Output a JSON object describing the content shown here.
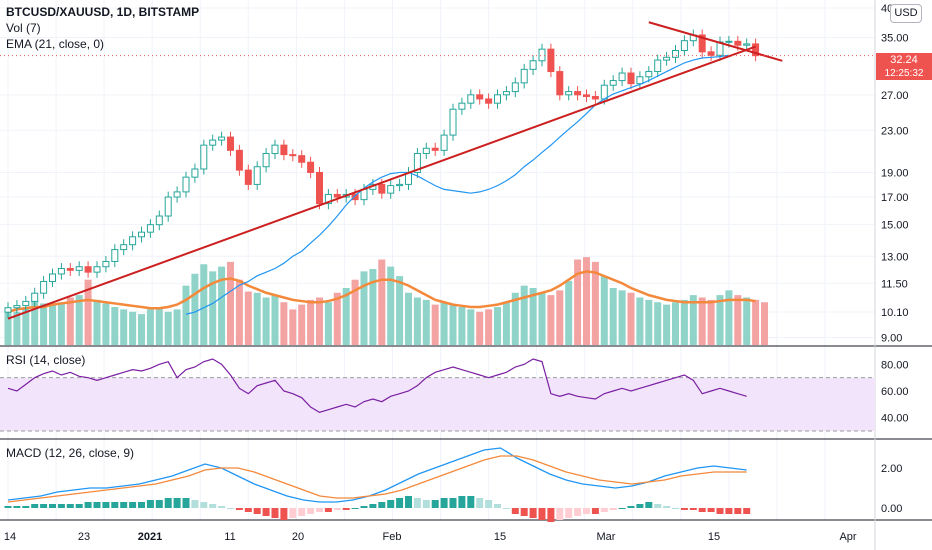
{
  "header": {
    "symbol_line": "BTCUSD/XAUUSD, 1D, BITSTAMP",
    "vol_label": "Vol (7)",
    "ema_label": "EMA (21, close, 0)",
    "rsi_label": "RSI (14, close)",
    "macd_label": "MACD (12, 26, close, 9)",
    "currency_button": "USD"
  },
  "price_tag": {
    "value": "32.24",
    "countdown": "12:25:32",
    "color": "#ef5350"
  },
  "colors": {
    "up": "#26a69a",
    "down": "#ef5350",
    "vol_up": "#8fd3c9",
    "vol_down": "#f4a3a3",
    "ema": "#2196f3",
    "vol_ma": "#f4893b",
    "trendline": "#cc1f1f",
    "rsi": "#7b1fa2",
    "rsi_band": "#f1e4fb",
    "macd": "#2196f3",
    "signal": "#f4893b"
  },
  "chart_data": [
    {
      "type": "candlestick",
      "title": "BTCUSD/XAUUSD, 1D, BITSTAMP",
      "y_ticks": [
        "9.00",
        "10.10",
        "11.50",
        "13.00",
        "15.00",
        "17.00",
        "19.00",
        "23.00",
        "27.00",
        "35.00",
        "40"
      ],
      "y_scale": "log",
      "x_ticks": [
        "14",
        "23",
        "2021",
        "11",
        "20",
        "Feb",
        "15",
        "Mar",
        "15",
        "Apr"
      ],
      "last_price": 32.24,
      "candles_close": [
        10.3,
        10.4,
        10.6,
        11.0,
        11.6,
        12.0,
        12.3,
        12.2,
        12.4,
        12.1,
        12.4,
        12.7,
        13.4,
        13.7,
        14.2,
        14.5,
        15.0,
        15.6,
        17.0,
        17.4,
        18.6,
        19.3,
        21.5,
        22.0,
        22.3,
        21.0,
        19.2,
        18.0,
        19.5,
        20.7,
        21.5,
        20.6,
        20.5,
        19.9,
        19.0,
        16.5,
        17.2,
        17.0,
        17.2,
        16.8,
        17.6,
        18.0,
        17.3,
        17.9,
        18.0,
        19.0,
        20.7,
        21.2,
        21.0,
        22.5,
        25.3,
        26.0,
        27.0,
        26.5,
        26.0,
        27.0,
        27.4,
        28.5,
        30.3,
        31.5,
        33.2,
        30.0,
        27.0,
        27.4,
        27.0,
        26.8,
        26.5,
        28.2,
        28.8,
        29.8,
        28.4,
        29.3,
        30.0,
        31.6,
        32.0,
        33.0,
        34.5,
        35.4,
        32.8,
        32.3,
        34.3,
        34.4,
        33.8,
        34.0,
        32.24
      ],
      "ema21": [
        10.0,
        10.1,
        10.3,
        10.5,
        10.8,
        11.1,
        11.4,
        11.6,
        11.9,
        12.1,
        12.3,
        12.6,
        13.0,
        13.3,
        13.8,
        14.3,
        14.9,
        15.6,
        16.4,
        17.1,
        17.7,
        18.2,
        18.6,
        18.9,
        19.0,
        19.0,
        18.7,
        18.3,
        17.9,
        17.6,
        17.5,
        17.4,
        17.3,
        17.4,
        17.6,
        17.9,
        18.3,
        18.8,
        19.5,
        20.1,
        20.8,
        21.5,
        22.3,
        23.1,
        23.9,
        24.8,
        25.8,
        26.5,
        27.1,
        27.5,
        27.9,
        28.3,
        28.8,
        29.4,
        30.0,
        30.6,
        31.2,
        31.6,
        31.9,
        32.0,
        32.1,
        32.3
      ],
      "trendlines": [
        {
          "from": {
            "bar": 0,
            "price": 9.8
          },
          "to": {
            "bar": 84,
            "price": 33.6
          }
        },
        {
          "from": {
            "bar": 72,
            "price": 37.5
          },
          "to": {
            "bar": 87,
            "price": 31.5
          }
        }
      ]
    },
    {
      "type": "bar",
      "title": "Vol (7)",
      "values": [
        30,
        28,
        32,
        38,
        35,
        34,
        36,
        40,
        42,
        55,
        38,
        35,
        32,
        30,
        28,
        26,
        30,
        32,
        28,
        30,
        50,
        60,
        68,
        62,
        66,
        70,
        55,
        45,
        44,
        40,
        42,
        36,
        30,
        34,
        38,
        40,
        36,
        44,
        48,
        55,
        62,
        64,
        72,
        66,
        58,
        44,
        40,
        38,
        34,
        36,
        34,
        32,
        30,
        28,
        30,
        32,
        36,
        44,
        50,
        48,
        44,
        42,
        46,
        54,
        72,
        74,
        70,
        58,
        48,
        46,
        44,
        40,
        38,
        36,
        34,
        36,
        38,
        42,
        40,
        38,
        42,
        46,
        42,
        40,
        38,
        36
      ],
      "ma": [
        28,
        30,
        31,
        32,
        32,
        34,
        35,
        36,
        37,
        38,
        37,
        36,
        35,
        34,
        33,
        32,
        31,
        31,
        32,
        34,
        38,
        43,
        48,
        52,
        55,
        56,
        54,
        50,
        47,
        44,
        42,
        40,
        38,
        37,
        36,
        36,
        37,
        39,
        42,
        46,
        50,
        53,
        55,
        55,
        53,
        50,
        46,
        42,
        38,
        36,
        34,
        33,
        32,
        32,
        33,
        34,
        36,
        38,
        40,
        42,
        44,
        46,
        50,
        55,
        60,
        62,
        61,
        58,
        55,
        52,
        48,
        45,
        42,
        40,
        38,
        37,
        36,
        36,
        36,
        36,
        37,
        38,
        38,
        38,
        37
      ]
    },
    {
      "type": "line",
      "title": "RSI (14, close)",
      "y_ticks": [
        "40.00",
        "60.00",
        "80.00"
      ],
      "band": [
        30,
        70
      ],
      "values": [
        62,
        60,
        65,
        70,
        73,
        75,
        72,
        74,
        71,
        70,
        68,
        70,
        72,
        74,
        76,
        75,
        77,
        80,
        82,
        70,
        76,
        78,
        82,
        84,
        80,
        72,
        62,
        58,
        64,
        66,
        68,
        60,
        58,
        55,
        48,
        44,
        46,
        48,
        50,
        48,
        52,
        54,
        52,
        56,
        58,
        60,
        64,
        70,
        74,
        76,
        78,
        76,
        74,
        72,
        70,
        72,
        74,
        78,
        80,
        84,
        82,
        58,
        56,
        58,
        56,
        55,
        54,
        58,
        60,
        62,
        60,
        62,
        64,
        66,
        68,
        70,
        72,
        68,
        58,
        60,
        62,
        60,
        58,
        56
      ]
    },
    {
      "type": "line",
      "title": "MACD (12, 26, close, 9)",
      "y_ticks": [
        "0.00",
        "2.00"
      ],
      "macd": [
        0.4,
        0.5,
        0.6,
        0.8,
        0.9,
        1.0,
        1.0,
        1.1,
        1.2,
        1.4,
        1.6,
        1.9,
        2.2,
        2.0,
        1.6,
        1.2,
        0.9,
        0.6,
        0.4,
        0.3,
        0.3,
        0.4,
        0.6,
        0.9,
        1.3,
        1.7,
        2.0,
        2.3,
        2.6,
        2.9,
        3.0,
        2.5,
        2.1,
        1.7,
        1.4,
        1.2,
        1.1,
        1.0,
        1.1,
        1.3,
        1.6,
        1.8,
        2.0,
        2.1,
        2.0,
        1.9
      ],
      "signal": [
        0.3,
        0.4,
        0.5,
        0.6,
        0.7,
        0.8,
        0.9,
        1.0,
        1.1,
        1.2,
        1.4,
        1.6,
        1.9,
        2.0,
        2.0,
        1.8,
        1.5,
        1.2,
        0.9,
        0.6,
        0.5,
        0.5,
        0.6,
        0.7,
        0.9,
        1.2,
        1.5,
        1.8,
        2.1,
        2.4,
        2.6,
        2.6,
        2.4,
        2.1,
        1.8,
        1.6,
        1.4,
        1.3,
        1.2,
        1.3,
        1.4,
        1.6,
        1.7,
        1.8,
        1.8,
        1.8
      ],
      "histogram": [
        0.1,
        0.1,
        0.1,
        0.2,
        0.2,
        0.2,
        0.2,
        0.2,
        0.2,
        0.3,
        0.3,
        0.3,
        0.3,
        0.3,
        0.3,
        0.3,
        0.4,
        0.4,
        0.5,
        0.5,
        0.5,
        0.4,
        0.3,
        0.2,
        0.1,
        0.0,
        -0.1,
        -0.2,
        -0.3,
        -0.4,
        -0.5,
        -0.6,
        -0.5,
        -0.4,
        -0.3,
        -0.2,
        -0.2,
        -0.1,
        -0.1,
        0.0,
        0.1,
        0.2,
        0.3,
        0.4,
        0.5,
        0.6,
        0.5,
        0.4,
        0.4,
        0.5,
        0.5,
        0.6,
        0.6,
        0.5,
        0.4,
        0.2,
        0.0,
        -0.3,
        -0.4,
        -0.5,
        -0.6,
        -0.7,
        -0.6,
        -0.5,
        -0.4,
        -0.3,
        -0.3,
        -0.2,
        -0.1,
        0.0,
        0.1,
        0.2,
        0.3,
        0.2,
        0.1,
        0.0,
        -0.1,
        -0.1,
        -0.2,
        -0.2,
        -0.3,
        -0.3,
        -0.3,
        -0.3
      ]
    }
  ]
}
